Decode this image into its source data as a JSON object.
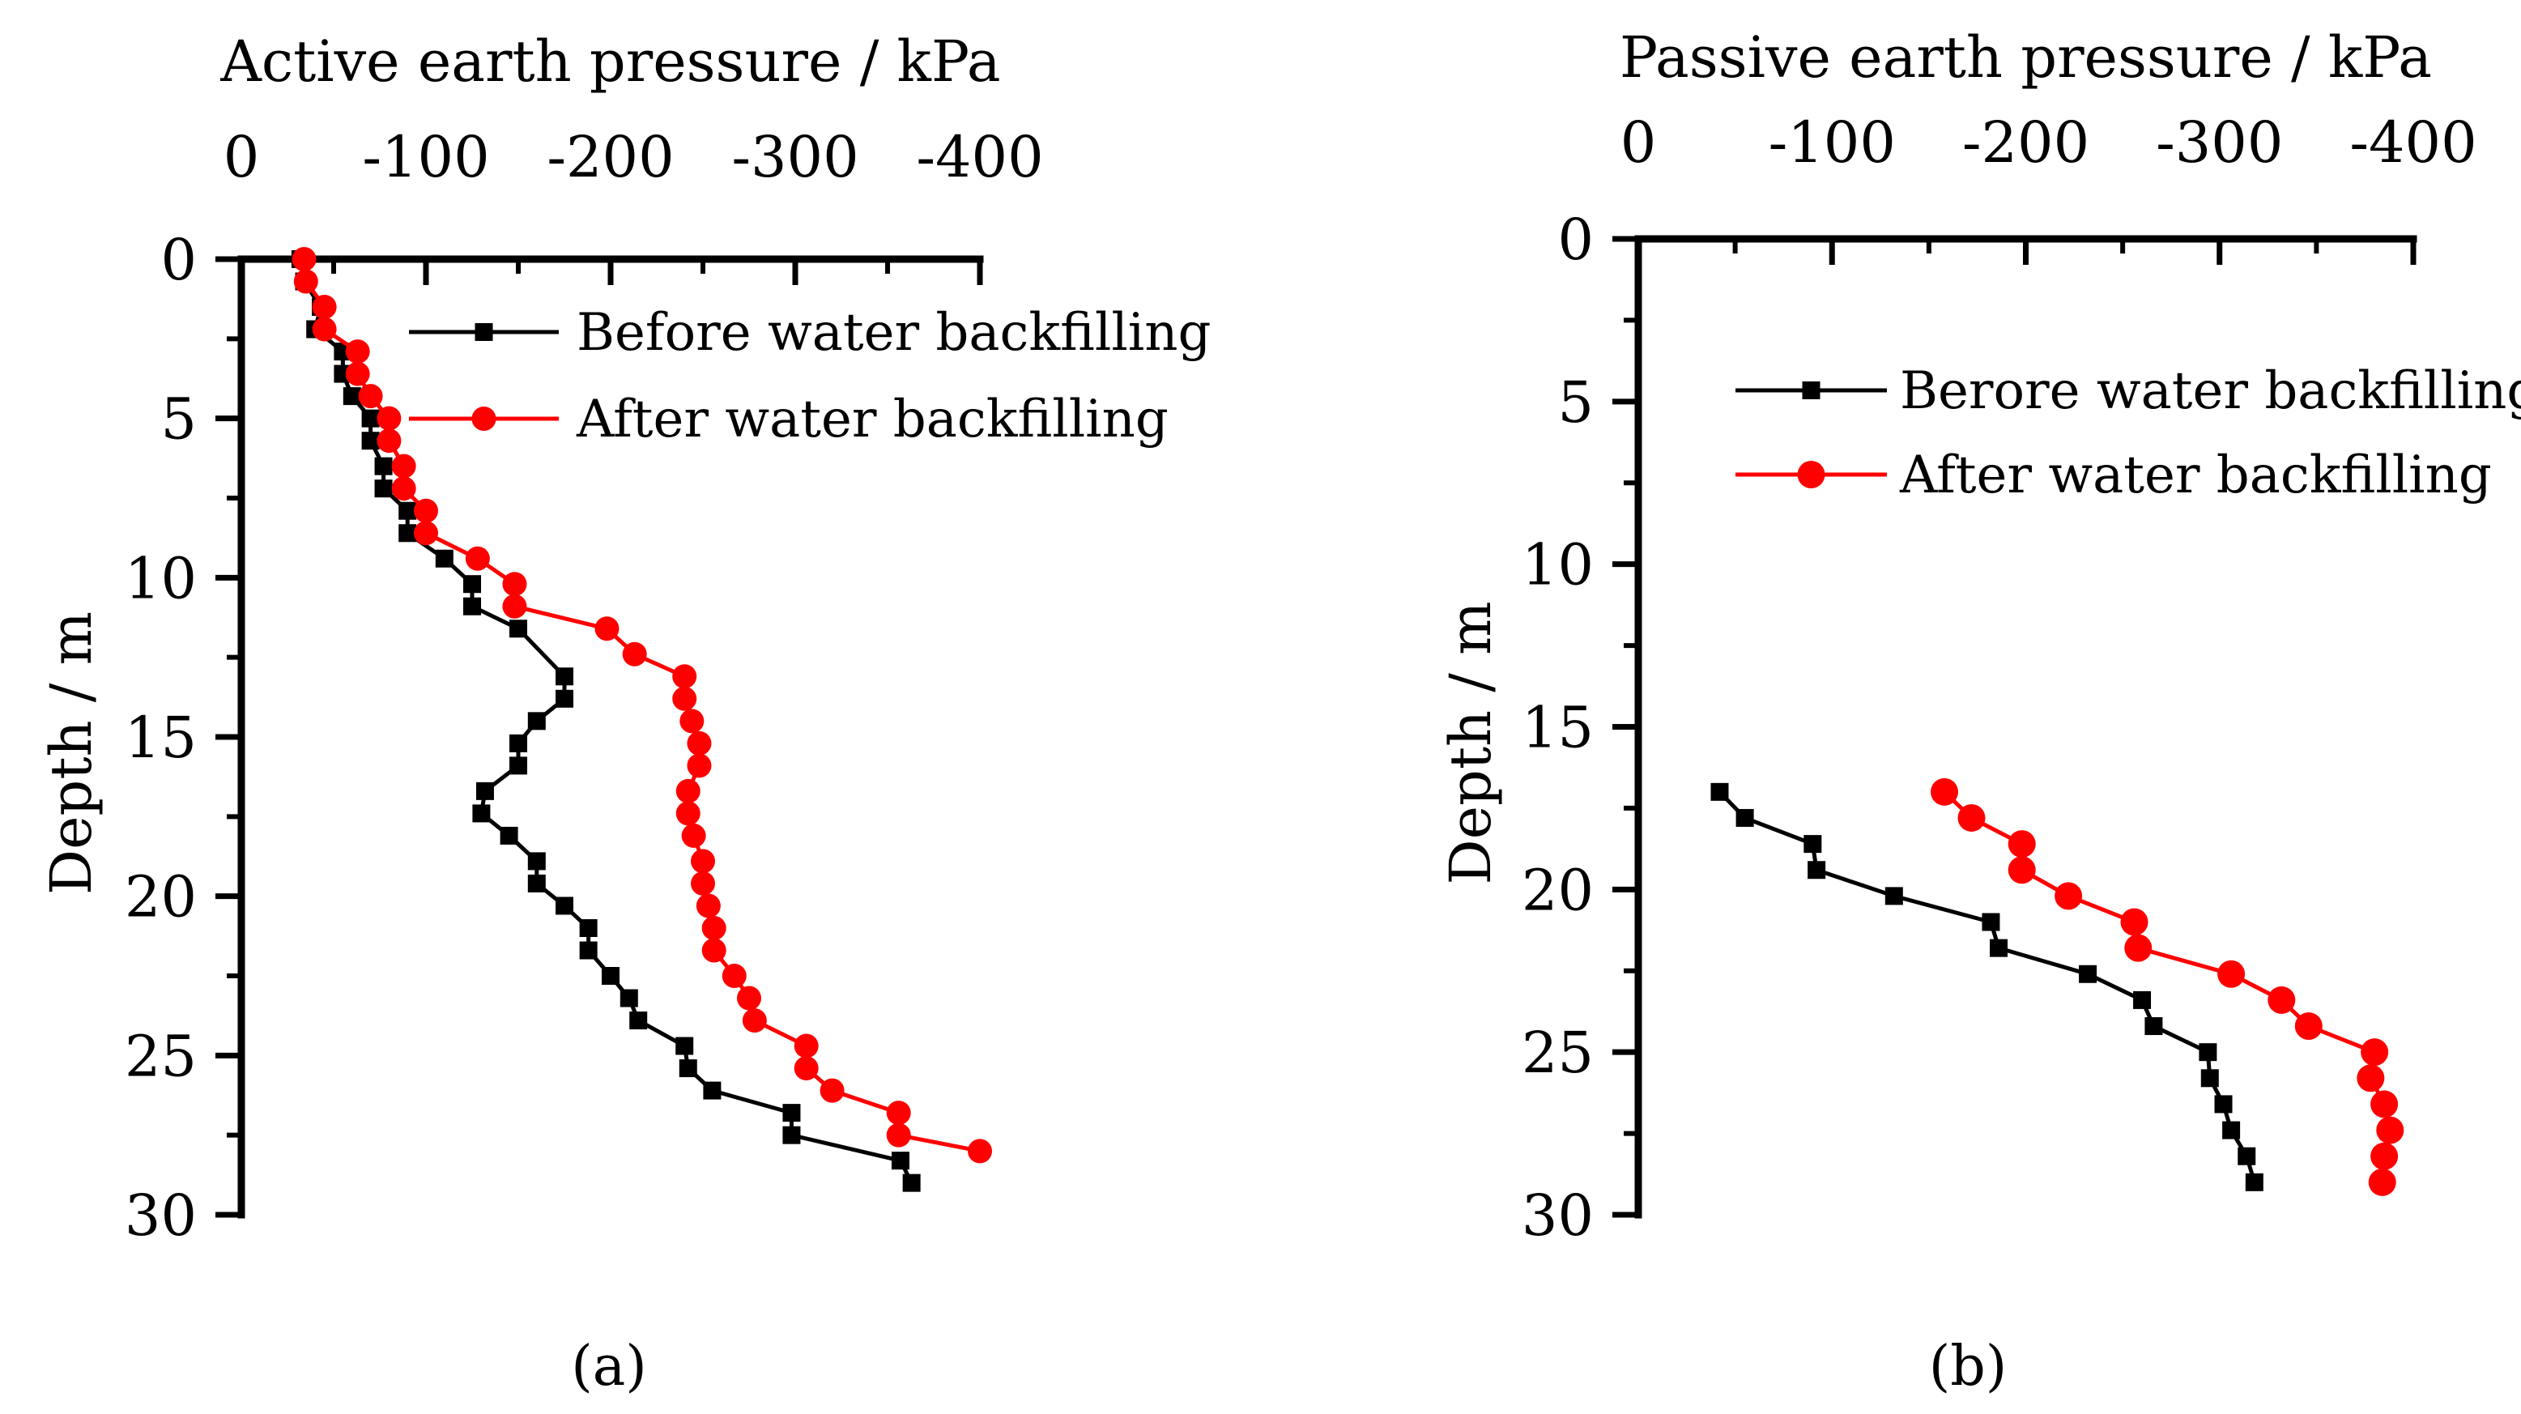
{
  "chart_data": [
    {
      "type": "scatter",
      "panel": "(a)",
      "caption": "(a)",
      "title": "",
      "xlabel": "Active earth pressure / kPa",
      "ylabel": "Depth / m",
      "xlim": [
        0,
        -400
      ],
      "ylim": [
        0,
        30
      ],
      "x_axis_position": "top",
      "y_axis_inverted": true,
      "x_ticks": [
        0,
        -100,
        -200,
        -300,
        -400
      ],
      "y_ticks": [
        0,
        5,
        10,
        15,
        20,
        25,
        30
      ],
      "x_tick_labels": [
        "0",
        "-100",
        "-200",
        "-300",
        "-400"
      ],
      "y_tick_labels": [
        "0",
        "5",
        "10",
        "15",
        "20",
        "25",
        "30"
      ],
      "grid": false,
      "legend_position": "top-right",
      "series": [
        {
          "name": "Before water backfilling",
          "legend_label": "Before water backfilling",
          "color": "#000000",
          "marker": "square",
          "depth": [
            0.0,
            0.7,
            1.5,
            2.2,
            2.9,
            3.6,
            4.3,
            5.0,
            5.7,
            6.5,
            7.2,
            7.9,
            8.6,
            9.4,
            10.2,
            10.9,
            11.6,
            13.1,
            13.8,
            14.5,
            15.2,
            15.9,
            16.7,
            17.4,
            18.1,
            18.9,
            19.6,
            20.3,
            21.0,
            21.7,
            22.5,
            23.2,
            23.9,
            24.7,
            25.4,
            26.1,
            26.8,
            27.5,
            28.3,
            29.0
          ],
          "pressure": [
            -32,
            -34,
            -43,
            -40,
            -55,
            -55,
            -60,
            -70,
            -70,
            -77,
            -77,
            -90,
            -90,
            -110,
            -125,
            -125,
            -150,
            -175,
            -175,
            -160,
            -150,
            -150,
            -132,
            -130,
            -145,
            -160,
            -160,
            -175,
            -188,
            -188,
            -200,
            -210,
            -215,
            -240,
            -242,
            -255,
            -298,
            -298,
            -357,
            -363
          ]
        },
        {
          "name": "After water backfilling",
          "legend_label": "After water backfilling",
          "color": "#ff0000",
          "marker": "circle",
          "depth": [
            0.0,
            0.7,
            1.5,
            2.2,
            2.9,
            3.6,
            4.3,
            5.0,
            5.7,
            6.5,
            7.2,
            7.9,
            8.6,
            9.4,
            10.2,
            10.9,
            11.6,
            12.4,
            13.1,
            13.8,
            14.5,
            15.2,
            15.9,
            16.7,
            17.4,
            18.1,
            18.9,
            19.6,
            20.3,
            21.0,
            21.7,
            22.5,
            23.2,
            23.9,
            24.7,
            25.4,
            26.1,
            26.8,
            27.5,
            28.0
          ],
          "pressure": [
            -34,
            -35,
            -45,
            -45,
            -63,
            -63,
            -70,
            -80,
            -80,
            -88,
            -88,
            -100,
            -100,
            -128,
            -148,
            -148,
            -198,
            -213,
            -240,
            -240,
            -244,
            -248,
            -248,
            -242,
            -242,
            -245,
            -250,
            -250,
            -253,
            -256,
            -256,
            -267,
            -275,
            -278,
            -306,
            -306,
            -320,
            -356,
            -356,
            -400
          ]
        }
      ]
    },
    {
      "type": "scatter",
      "panel": "(b)",
      "caption": "(b)",
      "title": "",
      "xlabel": "Passive earth pressure / kPa",
      "ylabel": "Depth / m",
      "xlim": [
        0,
        -400
      ],
      "ylim": [
        0,
        30
      ],
      "x_axis_position": "top",
      "y_axis_inverted": true,
      "x_ticks": [
        0,
        -100,
        -200,
        -300,
        -400
      ],
      "y_ticks": [
        0,
        5,
        10,
        15,
        20,
        25,
        30
      ],
      "x_tick_labels": [
        "0",
        "-100",
        "-200",
        "-300",
        "-400"
      ],
      "y_tick_labels": [
        "0",
        "5",
        "10",
        "15",
        "20",
        "25",
        "30"
      ],
      "grid": false,
      "legend_position": "top-right",
      "series": [
        {
          "name": "Berore water backfilling",
          "legend_label": "Berore water backfilling",
          "color": "#000000",
          "marker": "square",
          "depth": [
            17.0,
            17.8,
            18.6,
            19.4,
            20.2,
            21.0,
            21.8,
            22.6,
            23.4,
            24.2,
            25.0,
            25.8,
            26.6,
            27.4,
            28.2,
            29.0
          ],
          "pressure": [
            -42,
            -55,
            -90,
            -92,
            -132,
            -182,
            -186,
            -232,
            -260,
            -266,
            -294,
            -295,
            -302,
            -306,
            -314,
            -318
          ]
        },
        {
          "name": "After water backfilling",
          "legend_label": "After water backfilling",
          "color": "#ff0000",
          "marker": "circle",
          "depth": [
            17.0,
            17.8,
            18.6,
            19.4,
            20.2,
            21.0,
            21.8,
            22.6,
            23.4,
            24.2,
            25.0,
            25.8,
            26.6,
            27.4,
            28.2,
            29.0
          ],
          "pressure": [
            -158,
            -172,
            -198,
            -198,
            -222,
            -256,
            -258,
            -306,
            -332,
            -346,
            -380,
            -378,
            -385,
            -388,
            -385,
            -384
          ]
        }
      ]
    }
  ]
}
